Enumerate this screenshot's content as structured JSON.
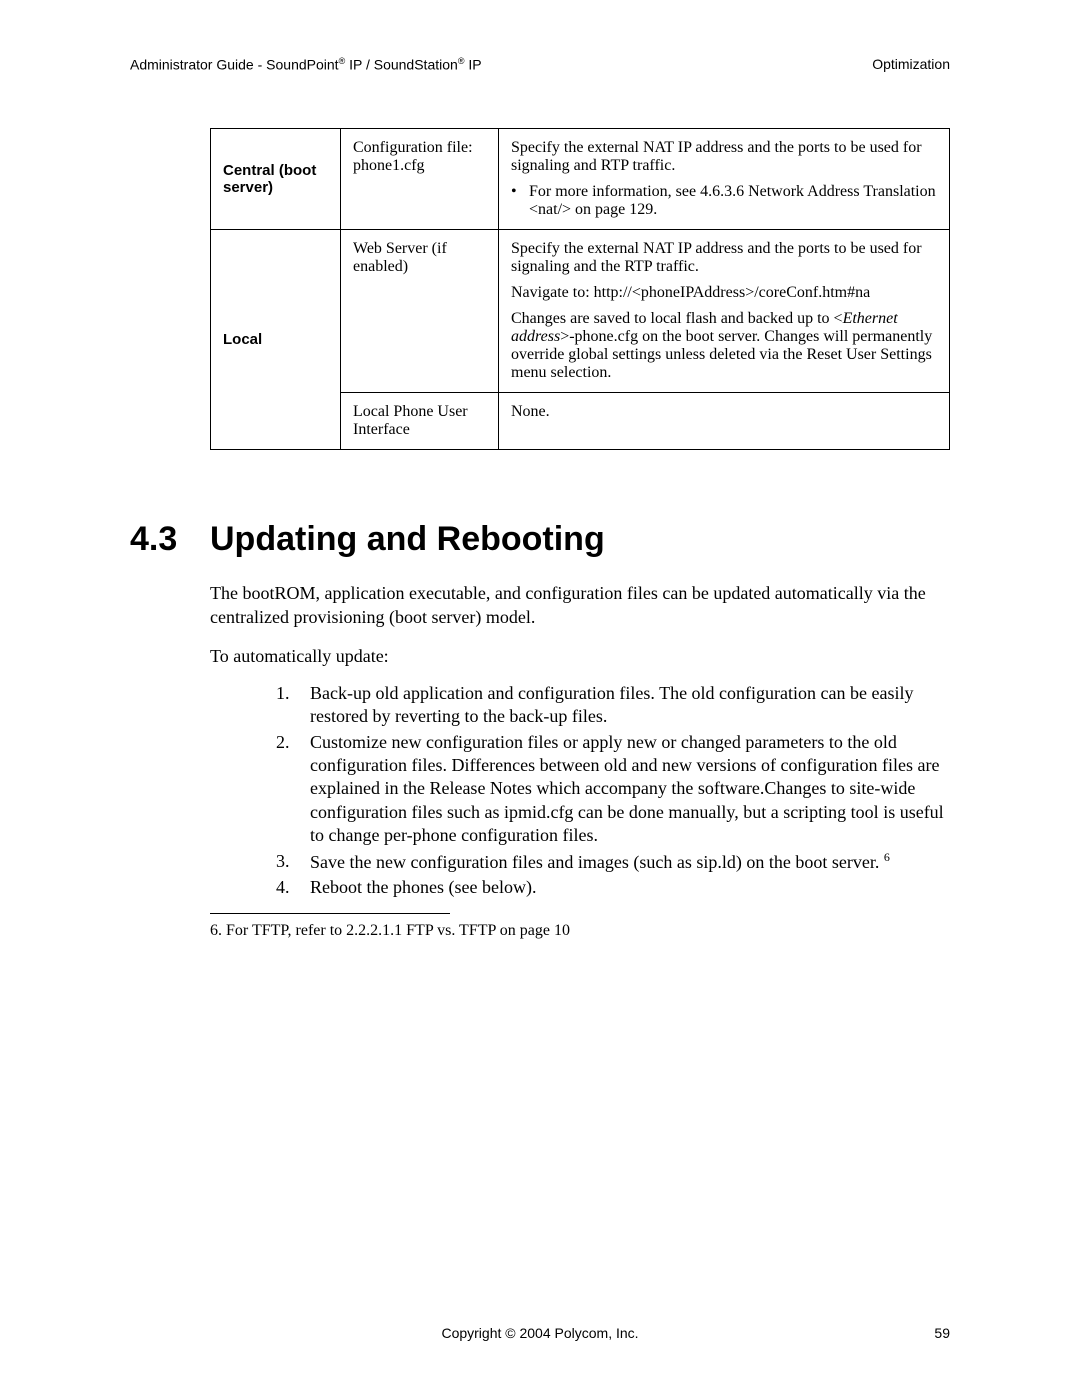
{
  "header": {
    "left_prefix": "Administrator Guide - SoundPoint",
    "left_mid": " IP / SoundStation",
    "left_suffix": " IP",
    "reg_mark": "®",
    "right": "Optimization"
  },
  "table": {
    "rows": [
      {
        "label": "Central (boot server)",
        "config": "Configuration file: phone1.cfg",
        "desc_intro": "Specify the external NAT IP address and the ports to be used for signaling and RTP traffic.",
        "bullet": "For more information, see 4.6.3.6 Network Address Translation <nat/> on page 129.",
        "rowspan_label": 1
      },
      {
        "label": "Local",
        "config": "Web Server (if enabled)",
        "desc_p1": "Specify the external NAT IP address and the ports to be used for signaling and the RTP traffic.",
        "desc_p2": "Navigate to: http://<phoneIPAddress>/coreConf.htm#na",
        "desc_p3a": "Changes are saved to local flash and backed up to <",
        "desc_p3_italic": "Ethernet address",
        "desc_p3b": ">-phone.cfg on the boot server.  Changes will permanently override global settings  unless deleted via the Reset User Settings menu selection."
      },
      {
        "config": "Local Phone User Interface",
        "desc": "None."
      }
    ]
  },
  "section": {
    "number": "4.3",
    "title": "Updating and Rebooting",
    "para1": "The bootROM, application executable, and configuration files can be updated automatically via the centralized provisioning (boot server) model.",
    "para2": "To automatically update:",
    "steps": [
      "Back-up old application and configuration files. The old configuration can be easily restored by reverting to the back-up files.",
      "Customize new configuration files or apply new or changed parameters to the old configuration files.  Differences between old and new versions of configuration files are explained in the Release Notes which accompany the software.Changes to site-wide configuration files such as ipmid.cfg can be done manually, but a scripting tool is useful to change per-phone configuration files.",
      "Save the new configuration files and images (such as sip.ld) on the boot server.",
      "Reboot the phones (see below)."
    ],
    "footnote_marker": "6",
    "footnote_text": "6.  For TFTP, refer to 2.2.2.1.1 FTP vs. TFTP on page 10"
  },
  "footer": {
    "center": "Copyright © 2004 Polycom, Inc.",
    "page": "59"
  }
}
